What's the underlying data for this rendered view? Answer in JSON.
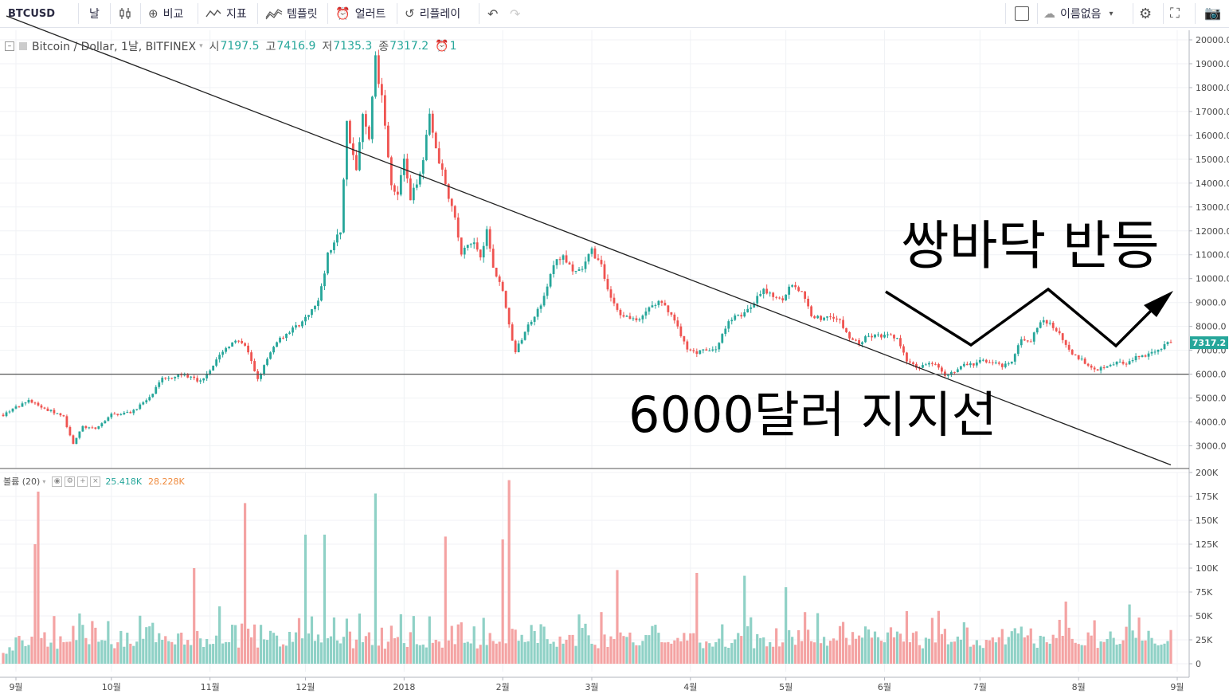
{
  "toolbar": {
    "symbol": "BTCUSD",
    "interval": "날",
    "compare": "비교",
    "indicators": "지표",
    "templates": "템플릿",
    "alerts": "얼러트",
    "replay": "리플레이",
    "layout_name": "이름없음",
    "colors": {
      "icon": "#555555",
      "border": "#e0e3eb"
    }
  },
  "legend": {
    "title": "Bitcoin / Dollar, 1날, BITFINEX",
    "open_label": "시",
    "open": "7197.5",
    "high_label": "고",
    "high": "7416.9",
    "low_label": "저",
    "low": "7135.3",
    "close_label": "종",
    "close": "7317.2",
    "alerts_count": "1"
  },
  "volume_legend": {
    "title": "볼륨 (20)",
    "value": "25.418K",
    "ma": "28.228K"
  },
  "annotations": {
    "double_bottom": "쌍바닥 반등",
    "support": "6000달러 지지선"
  },
  "colors": {
    "up": "#26a69a",
    "down": "#ef5350",
    "vol_up": "#8fd1c6",
    "vol_down": "#f4a3a3",
    "last_price_bg": "#26a69a",
    "ma": "#ef8a3c"
  },
  "chart_data": {
    "type": "candlestick",
    "title": "Bitcoin / Dollar, 1날, BITFINEX",
    "price_axis": {
      "ticks": [
        3000,
        4000,
        5000,
        6000,
        7000,
        8000,
        9000,
        10000,
        11000,
        12000,
        13000,
        14000,
        15000,
        16000,
        17000,
        18000,
        19000,
        20000
      ],
      "tick_labels": [
        "3000.0",
        "4000.0",
        "5000.0",
        "6000.0",
        "7000.0",
        "8000.0",
        "9000.0",
        "10000.0",
        "11000.0",
        "12000.0",
        "13000.0",
        "14000.0",
        "15000.0",
        "16000.0",
        "17000.0",
        "18000.0",
        "19000.0",
        "20000.0"
      ],
      "range": [
        2050,
        20400
      ]
    },
    "volume_axis": {
      "ticks": [
        0,
        25,
        50,
        75,
        100,
        125,
        150,
        175,
        200
      ],
      "tick_labels": [
        "0",
        "25K",
        "50K",
        "75K",
        "100K",
        "125K",
        "150K",
        "175K",
        "200K"
      ],
      "range": [
        0,
        200
      ]
    },
    "time_axis": {
      "labels": [
        "9월",
        "10월",
        "11월",
        "12월",
        "2018",
        "2월",
        "3월",
        "4월",
        "5월",
        "6월",
        "7월",
        "8월",
        "9월"
      ],
      "day_index": [
        0,
        30,
        61,
        91,
        122,
        153,
        181,
        212,
        242,
        273,
        303,
        334,
        365
      ]
    },
    "last_price": "7317.2",
    "price_anchors": [
      [
        -4,
        4300
      ],
      [
        0,
        4600
      ],
      [
        4,
        4900
      ],
      [
        8,
        4600
      ],
      [
        12,
        4400
      ],
      [
        15,
        4200
      ],
      [
        18,
        3100
      ],
      [
        21,
        3800
      ],
      [
        25,
        3700
      ],
      [
        30,
        4300
      ],
      [
        36,
        4400
      ],
      [
        42,
        5000
      ],
      [
        46,
        5800
      ],
      [
        52,
        6000
      ],
      [
        58,
        5700
      ],
      [
        62,
        6400
      ],
      [
        68,
        7400
      ],
      [
        72,
        7200
      ],
      [
        76,
        5800
      ],
      [
        82,
        7400
      ],
      [
        88,
        8000
      ],
      [
        90,
        8200
      ],
      [
        95,
        9000
      ],
      [
        98,
        11000
      ],
      [
        102,
        12000
      ],
      [
        104,
        16500
      ],
      [
        107,
        14500
      ],
      [
        109,
        16800
      ],
      [
        111,
        16000
      ],
      [
        113,
        19200
      ],
      [
        115,
        17500
      ],
      [
        116,
        16500
      ],
      [
        118,
        14000
      ],
      [
        120,
        13500
      ],
      [
        122,
        15000
      ],
      [
        124,
        13200
      ],
      [
        128,
        15000
      ],
      [
        130,
        17000
      ],
      [
        132,
        15500
      ],
      [
        134,
        14500
      ],
      [
        136,
        13500
      ],
      [
        138,
        12500
      ],
      [
        140,
        11000
      ],
      [
        142,
        11400
      ],
      [
        144,
        11500
      ],
      [
        146,
        11000
      ],
      [
        148,
        12000
      ],
      [
        150,
        10500
      ],
      [
        153,
        9500
      ],
      [
        155,
        8000
      ],
      [
        157,
        6900
      ],
      [
        160,
        7800
      ],
      [
        163,
        8500
      ],
      [
        166,
        9200
      ],
      [
        169,
        10600
      ],
      [
        172,
        11000
      ],
      [
        175,
        10200
      ],
      [
        178,
        10400
      ],
      [
        181,
        11200
      ],
      [
        184,
        10500
      ],
      [
        187,
        9200
      ],
      [
        190,
        8500
      ],
      [
        193,
        8400
      ],
      [
        196,
        8200
      ],
      [
        199,
        8800
      ],
      [
        202,
        9000
      ],
      [
        205,
        8700
      ],
      [
        208,
        8000
      ],
      [
        211,
        7000
      ],
      [
        214,
        6900
      ],
      [
        217,
        7000
      ],
      [
        220,
        7000
      ],
      [
        223,
        8000
      ],
      [
        226,
        8500
      ],
      [
        229,
        8500
      ],
      [
        232,
        9000
      ],
      [
        235,
        9500
      ],
      [
        238,
        9300
      ],
      [
        241,
        9200
      ],
      [
        244,
        9800
      ],
      [
        247,
        9400
      ],
      [
        250,
        8500
      ],
      [
        253,
        8300
      ],
      [
        256,
        8500
      ],
      [
        259,
        8200
      ],
      [
        262,
        7500
      ],
      [
        265,
        7300
      ],
      [
        268,
        7600
      ],
      [
        271,
        7600
      ],
      [
        274,
        7600
      ],
      [
        277,
        7500
      ],
      [
        280,
        6500
      ],
      [
        283,
        6300
      ],
      [
        286,
        6400
      ],
      [
        289,
        6500
      ],
      [
        292,
        6000
      ],
      [
        295,
        6100
      ],
      [
        298,
        6400
      ],
      [
        301,
        6400
      ],
      [
        304,
        6600
      ],
      [
        307,
        6500
      ],
      [
        310,
        6300
      ],
      [
        313,
        6500
      ],
      [
        316,
        7500
      ],
      [
        319,
        7400
      ],
      [
        322,
        8200
      ],
      [
        325,
        8100
      ],
      [
        328,
        7700
      ],
      [
        331,
        7000
      ],
      [
        334,
        6700
      ],
      [
        337,
        6400
      ],
      [
        340,
        6200
      ],
      [
        343,
        6400
      ],
      [
        346,
        6500
      ],
      [
        349,
        6400
      ],
      [
        352,
        6700
      ],
      [
        355,
        6800
      ],
      [
        358,
        7000
      ],
      [
        361,
        7200
      ],
      [
        363,
        7317
      ]
    ],
    "volume_spikes": [
      [
        6,
        125
      ],
      [
        7,
        180
      ],
      [
        56,
        100
      ],
      [
        64,
        60
      ],
      [
        72,
        168
      ],
      [
        91,
        135
      ],
      [
        97,
        135
      ],
      [
        113,
        178
      ],
      [
        135,
        133
      ],
      [
        153,
        130
      ],
      [
        155,
        192
      ],
      [
        189,
        98
      ],
      [
        214,
        95
      ],
      [
        229,
        92
      ],
      [
        242,
        80
      ],
      [
        280,
        55
      ],
      [
        330,
        65
      ],
      [
        350,
        62
      ]
    ],
    "lines": [
      {
        "name": "downtrend",
        "from": [
          -3,
          21000
        ],
        "to": [
          363,
          2200
        ]
      },
      {
        "name": "support",
        "price": 6000
      }
    ]
  }
}
